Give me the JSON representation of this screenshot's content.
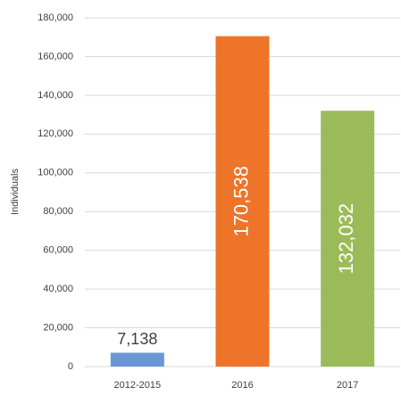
{
  "chart_data": {
    "type": "bar",
    "y_axis_label": "Individuals",
    "categories": [
      "2012-2015",
      "2016",
      "2017"
    ],
    "values": [
      7138,
      170538,
      132032
    ],
    "value_labels": [
      "7,138",
      "170,538",
      "132,032"
    ],
    "colors": [
      "#6b96d6",
      "#ed7428",
      "#9bbb59"
    ],
    "ylim": [
      0,
      180000
    ],
    "yticks": [
      0,
      {
        "value": 20000,
        "label": "20,000"
      },
      {
        "value": 40000,
        "label": "40,000"
      },
      {
        "value": 60000,
        "label": "60,000"
      },
      {
        "value": 80000,
        "label": "80,000"
      },
      {
        "value": 100000,
        "label": "100,000"
      },
      {
        "value": 120000,
        "label": "120,000"
      },
      {
        "value": 140000,
        "label": "140,000"
      },
      {
        "value": 160000,
        "label": "160,000"
      },
      {
        "value": 180000,
        "label": "180,000"
      }
    ],
    "grid": true
  }
}
